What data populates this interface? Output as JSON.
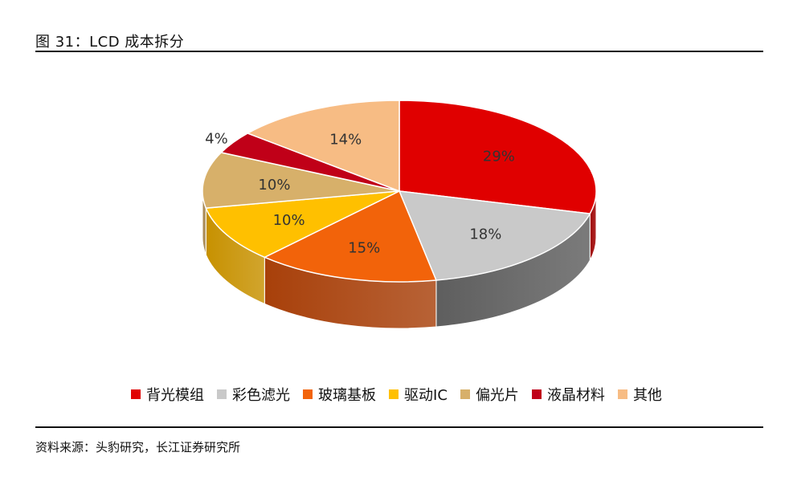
{
  "header": {
    "figure_title": "图 31：LCD 成本拆分"
  },
  "footer": {
    "source": "资料来源：头豹研究，长江证券研究所"
  },
  "chart_data": {
    "type": "pie",
    "title": "图 31：LCD 成本拆分",
    "style": "3d",
    "legend_position": "bottom",
    "slices": [
      {
        "label": "背光模组",
        "value": 29,
        "display": "29%",
        "color": "#E00000",
        "side_color": "#9E0000"
      },
      {
        "label": "彩色滤光",
        "value": 18,
        "display": "18%",
        "color": "#C9C9C9",
        "side_color": "#5E5E5E"
      },
      {
        "label": "玻璃基板",
        "value": 15,
        "display": "15%",
        "color": "#F2630A",
        "side_color": "#A8400A"
      },
      {
        "label": "驱动IC",
        "value": 10,
        "display": "10%",
        "color": "#FFC000",
        "side_color": "#C79100"
      },
      {
        "label": "偏光片",
        "value": 10,
        "display": "10%",
        "color": "#D7B06A",
        "side_color": "#A4834A"
      },
      {
        "label": "液晶材料",
        "value": 4,
        "display": "4%",
        "color": "#C00018",
        "side_color": "#7A0010"
      },
      {
        "label": "其他",
        "value": 14,
        "display": "14%",
        "color": "#F7BC84",
        "side_color": "#C8905E"
      }
    ]
  }
}
